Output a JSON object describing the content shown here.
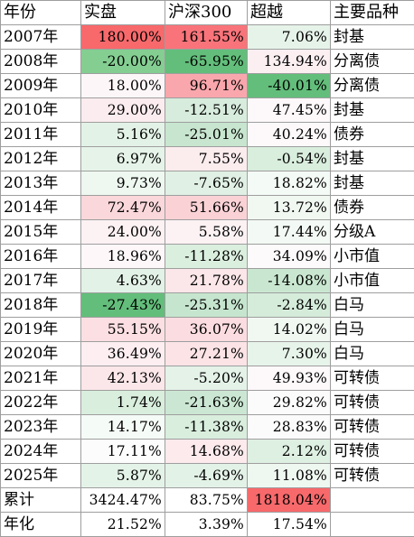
{
  "headers": [
    "年份",
    "实盘",
    "沪深300",
    "超越",
    "主要品种"
  ],
  "rows": [
    {
      "year": "2007年",
      "cells": [
        {
          "text": "180.00%",
          "bg": "#f8696b"
        },
        {
          "text": "161.55%",
          "bg": "#f8747a"
        },
        {
          "text": "7.06%",
          "bg": "#e6f3e9"
        }
      ],
      "variety": "封基"
    },
    {
      "year": "2008年",
      "cells": [
        {
          "text": "-20.00%",
          "bg": "#84ce92"
        },
        {
          "text": "-65.95%",
          "bg": "#63be7b"
        },
        {
          "text": "134.94%",
          "bg": "#fbeff2"
        }
      ],
      "variety": "分离债"
    },
    {
      "year": "2009年",
      "cells": [
        {
          "text": "18.00%",
          "bg": "#fdf6f8"
        },
        {
          "text": "96.71%",
          "bg": "#f9a7ac"
        },
        {
          "text": "-40.01%",
          "bg": "#63be7b"
        }
      ],
      "variety": "分离债"
    },
    {
      "year": "2010年",
      "cells": [
        {
          "text": "29.00%",
          "bg": "#fbecef"
        },
        {
          "text": "-12.51%",
          "bg": "#d7ecdc"
        },
        {
          "text": "47.45%",
          "bg": "#fdf8fa"
        }
      ],
      "variety": "封基"
    },
    {
      "year": "2011年",
      "cells": [
        {
          "text": "5.16%",
          "bg": "#e3f2e7"
        },
        {
          "text": "-25.01%",
          "bg": "#c8e5cf"
        },
        {
          "text": "40.24%",
          "bg": "#fdf9fa"
        }
      ],
      "variety": "债券"
    },
    {
      "year": "2012年",
      "cells": [
        {
          "text": "6.97%",
          "bg": "#e6f3e9"
        },
        {
          "text": "7.55%",
          "bg": "#fbecee"
        },
        {
          "text": "-0.54%",
          "bg": "#d9eedd"
        }
      ],
      "variety": "封基"
    },
    {
      "year": "2013年",
      "cells": [
        {
          "text": "9.73%",
          "bg": "#eef7f0"
        },
        {
          "text": "-7.65%",
          "bg": "#e0f0e4"
        },
        {
          "text": "18.82%",
          "bg": "#f4faf5"
        }
      ],
      "variety": "封基"
    },
    {
      "year": "2014年",
      "cells": [
        {
          "text": "72.47%",
          "bg": "#fad7da"
        },
        {
          "text": "51.66%",
          "bg": "#fad2d6"
        },
        {
          "text": "13.72%",
          "bg": "#f1f8f2"
        }
      ],
      "variety": "债券"
    },
    {
      "year": "2015年",
      "cells": [
        {
          "text": "24.00%",
          "bg": "#fcf1f3"
        },
        {
          "text": "5.58%",
          "bg": "#fcf2f4"
        },
        {
          "text": "17.44%",
          "bg": "#f3f9f4"
        }
      ],
      "variety": "分级A"
    },
    {
      "year": "2016年",
      "cells": [
        {
          "text": "18.96%",
          "bg": "#fdf7f9"
        },
        {
          "text": "-11.28%",
          "bg": "#dbefdf"
        },
        {
          "text": "34.09%",
          "bg": "#fcfafb"
        }
      ],
      "variety": "小市值"
    },
    {
      "year": "2017年",
      "cells": [
        {
          "text": "4.63%",
          "bg": "#e2f2e6"
        },
        {
          "text": "21.78%",
          "bg": "#fbe6e9"
        },
        {
          "text": "-14.08%",
          "bg": "#c9e7d0"
        }
      ],
      "variety": "小市值"
    },
    {
      "year": "2018年",
      "cells": [
        {
          "text": "-27.43%",
          "bg": "#63be7b"
        },
        {
          "text": "-25.31%",
          "bg": "#c6e5ce"
        },
        {
          "text": "-2.84%",
          "bg": "#d5ecda"
        }
      ],
      "variety": "白马"
    },
    {
      "year": "2019年",
      "cells": [
        {
          "text": "55.15%",
          "bg": "#fbdfe2"
        },
        {
          "text": "36.07%",
          "bg": "#fbdce0"
        },
        {
          "text": "14.02%",
          "bg": "#f1f8f2"
        }
      ],
      "variety": "白马"
    },
    {
      "year": "2020年",
      "cells": [
        {
          "text": "36.49%",
          "bg": "#fceef1"
        },
        {
          "text": "27.21%",
          "bg": "#fbe3e6"
        },
        {
          "text": "7.30%",
          "bg": "#e7f4ea"
        }
      ],
      "variety": "白马"
    },
    {
      "year": "2021年",
      "cells": [
        {
          "text": "42.13%",
          "bg": "#fbe6e9"
        },
        {
          "text": "-5.20%",
          "bg": "#e4f2e8"
        },
        {
          "text": "49.93%",
          "bg": "#fdf8f9"
        }
      ],
      "variety": "可转债"
    },
    {
      "year": "2022年",
      "cells": [
        {
          "text": "1.74%",
          "bg": "#d9eedd"
        },
        {
          "text": "-21.63%",
          "bg": "#cbe7d3"
        },
        {
          "text": "29.82%",
          "bg": "#fcfbfc"
        }
      ],
      "variety": "可转债"
    },
    {
      "year": "2023年",
      "cells": [
        {
          "text": "14.17%",
          "bg": "#f5fbf6"
        },
        {
          "text": "-11.38%",
          "bg": "#d9eedd"
        },
        {
          "text": "28.83%",
          "bg": "#fcfbfc"
        }
      ],
      "variety": "可转债"
    },
    {
      "year": "2024年",
      "cells": [
        {
          "text": "17.11%",
          "bg": "#fbfcfb"
        },
        {
          "text": "14.68%",
          "bg": "#fceaed"
        },
        {
          "text": "2.12%",
          "bg": "#def0e2"
        }
      ],
      "variety": "可转债"
    },
    {
      "year": "2025年",
      "cells": [
        {
          "text": "5.87%",
          "bg": "#e4f3e8"
        },
        {
          "text": "-4.69%",
          "bg": "#e3f2e7"
        },
        {
          "text": "11.08%",
          "bg": "#eff7f1"
        }
      ],
      "variety": "可转债"
    }
  ],
  "summary": [
    {
      "label": "累计",
      "cells": [
        {
          "text": "3424.47%",
          "bg": "#ffffff"
        },
        {
          "text": "83.75%",
          "bg": "#ffffff"
        },
        {
          "text": "1818.04%",
          "bg": "#f8696b"
        }
      ],
      "variety": ""
    },
    {
      "label": "年化",
      "cells": [
        {
          "text": "21.52%",
          "bg": "#ffffff"
        },
        {
          "text": "3.39%",
          "bg": "#ffffff"
        },
        {
          "text": "17.54%",
          "bg": "#ffffff"
        }
      ],
      "variety": ""
    }
  ],
  "colors": {
    "border": "#9e9e9e",
    "text": "#000000",
    "max_red": "#f8696b",
    "max_green": "#63be7b"
  }
}
